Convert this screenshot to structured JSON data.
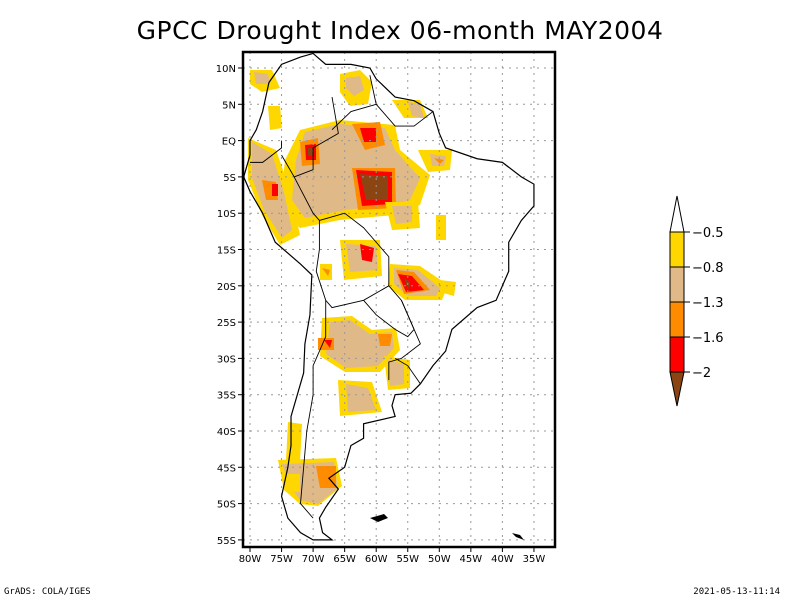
{
  "title": "GPCC Drought Index 06-month MAY2004",
  "footer": {
    "left": "GrADS: COLA/IGES",
    "right": "2021-05-13-11:14"
  },
  "map": {
    "region": "South America",
    "lon_range": [
      -81,
      -31
    ],
    "lat_range": [
      12,
      -56
    ],
    "y_ticks": [
      {
        "lat": 10,
        "label": "10N"
      },
      {
        "lat": 5,
        "label": "5N"
      },
      {
        "lat": 0,
        "label": "EQ"
      },
      {
        "lat": -5,
        "label": "5S"
      },
      {
        "lat": -10,
        "label": "10S"
      },
      {
        "lat": -15,
        "label": "15S"
      },
      {
        "lat": -20,
        "label": "20S"
      },
      {
        "lat": -25,
        "label": "25S"
      },
      {
        "lat": -30,
        "label": "30S"
      },
      {
        "lat": -35,
        "label": "35S"
      },
      {
        "lat": -40,
        "label": "40S"
      },
      {
        "lat": -45,
        "label": "45S"
      },
      {
        "lat": -50,
        "label": "50S"
      },
      {
        "lat": -55,
        "label": "55S"
      }
    ],
    "x_ticks": [
      {
        "lon": -80,
        "label": "80W"
      },
      {
        "lon": -75,
        "label": "75W"
      },
      {
        "lon": -70,
        "label": "70W"
      },
      {
        "lon": -65,
        "label": "65W"
      },
      {
        "lon": -60,
        "label": "60W"
      },
      {
        "lon": -55,
        "label": "55W"
      },
      {
        "lon": -50,
        "label": "50W"
      },
      {
        "lon": -45,
        "label": "45W"
      },
      {
        "lon": -40,
        "label": "40W"
      },
      {
        "lon": -35,
        "label": "35W"
      }
    ],
    "gridlines": true
  },
  "colorbar": {
    "levels": [
      "-0.5",
      "-0.8",
      "-1.3",
      "-1.6",
      "-2"
    ],
    "colors": {
      "above_-0.5": "#ffffff",
      "-0.8_to_-0.5": "#ffd700",
      "-1.3_to_-0.8": "#dfb987",
      "-1.6_to_-1.3": "#ff8c00",
      "-2_to_-1.6": "#ff0000",
      "below_-2": "#8b4513"
    },
    "placement": "right"
  }
}
